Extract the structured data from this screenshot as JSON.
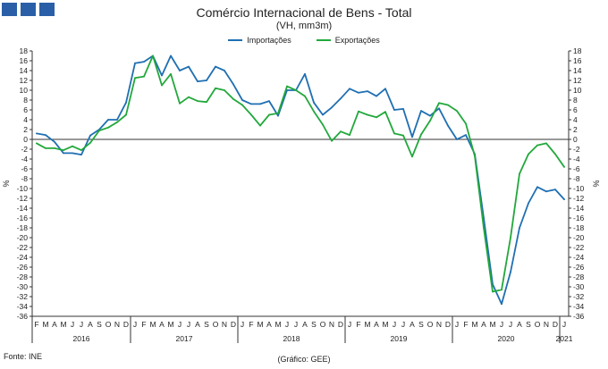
{
  "brand": {
    "logo_color": "#2a5fa8",
    "logo_blocks": 3
  },
  "colors": {
    "importacoes": "#1f6fb2",
    "exportacoes": "#22a83c",
    "axis": "#333333"
  },
  "footer": {
    "source": "Fonte: INE",
    "credit": "(Gráfico: GEE)"
  },
  "chart_data": {
    "type": "line",
    "title": "Comércio Internacional de Bens - Total",
    "subtitle": "(VH, mm3m)",
    "ylabel_left": "%",
    "ylabel_right": "%",
    "ylim": [
      -36,
      18
    ],
    "ytick_step": 2,
    "legend_position": "top-center",
    "grid": false,
    "month_labels": [
      "F",
      "M",
      "A",
      "M",
      "J",
      "J",
      "A",
      "S",
      "O",
      "N",
      "D",
      "J",
      "F",
      "M",
      "A",
      "M",
      "J",
      "J",
      "A",
      "S",
      "O",
      "N",
      "D",
      "J",
      "F",
      "M",
      "A",
      "M",
      "J",
      "J",
      "A",
      "S",
      "O",
      "N",
      "D",
      "J",
      "F",
      "M",
      "A",
      "M",
      "J",
      "J",
      "A",
      "S",
      "O",
      "N",
      "D",
      "J",
      "F",
      "M",
      "A",
      "M",
      "J",
      "J",
      "A",
      "S",
      "O",
      "N",
      "D",
      "J"
    ],
    "year_labels": [
      {
        "label": "2016",
        "start": 0,
        "end": 10
      },
      {
        "label": "2017",
        "start": 11,
        "end": 22
      },
      {
        "label": "2018",
        "start": 23,
        "end": 34
      },
      {
        "label": "2019",
        "start": 35,
        "end": 46
      },
      {
        "label": "2020",
        "start": 47,
        "end": 58
      },
      {
        "label": "2021",
        "start": 59,
        "end": 59
      }
    ],
    "series": [
      {
        "name": "Importações",
        "color": "#1f6fb2",
        "values": [
          1.2,
          0.9,
          -0.5,
          -2.8,
          -2.8,
          -3.1,
          0.8,
          2.0,
          4.0,
          4.0,
          7.5,
          15.5,
          15.8,
          17.0,
          13.0,
          17.0,
          14.0,
          14.8,
          11.8,
          12.0,
          14.8,
          14.0,
          11.2,
          8.0,
          7.2,
          7.2,
          7.8,
          4.8,
          10.0,
          10.0,
          13.3,
          7.5,
          5.0,
          6.5,
          8.3,
          10.3,
          9.5,
          9.8,
          8.8,
          10.3,
          6.0,
          6.2,
          0.5,
          5.8,
          4.8,
          6.3,
          2.8,
          0.0,
          0.9,
          -3.0,
          -16.0,
          -29.5,
          -33.5,
          -27.0,
          -18.0,
          -13.0,
          -9.7,
          -10.6,
          -10.2,
          -12.2
        ]
      },
      {
        "name": "Exportações",
        "color": "#22a83c",
        "values": [
          -0.8,
          -1.8,
          -1.8,
          -2.2,
          -1.4,
          -2.2,
          -0.7,
          1.8,
          2.4,
          3.5,
          5.0,
          12.5,
          12.8,
          17.0,
          11.0,
          13.3,
          7.3,
          8.6,
          7.8,
          7.6,
          10.4,
          10.0,
          8.2,
          7.0,
          5.0,
          2.8,
          5.0,
          5.3,
          10.8,
          10.0,
          8.8,
          5.7,
          3.0,
          -0.3,
          1.6,
          0.9,
          5.7,
          5.0,
          4.5,
          5.6,
          1.2,
          0.8,
          -3.5,
          1.0,
          3.8,
          7.4,
          7.0,
          5.8,
          3.2,
          -3.4,
          -18.0,
          -31.0,
          -30.6,
          -20.0,
          -7.0,
          -3.0,
          -1.2,
          -0.8,
          -3.0,
          -5.6
        ]
      }
    ]
  }
}
